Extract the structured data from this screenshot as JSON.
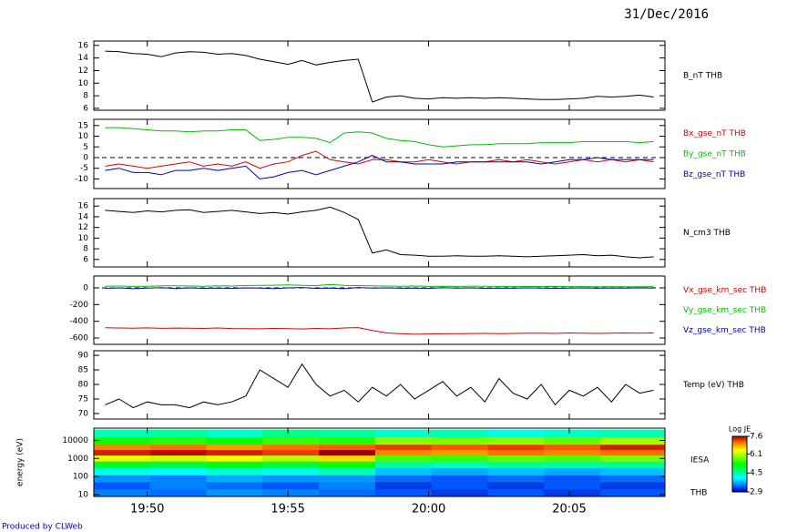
{
  "date": "31/Dec/2016",
  "footer": "Produced by CLWeb",
  "chart_data": [
    {
      "type": "line",
      "x": [
        48.5,
        49,
        49.5,
        50,
        50.5,
        51,
        51.5,
        52,
        52.5,
        53,
        53.5,
        54,
        54.5,
        55,
        55.5,
        56,
        56.5,
        57,
        57.5,
        58,
        58.5,
        59,
        59.5,
        60,
        60.5,
        61,
        61.5,
        62,
        62.5,
        63,
        63.5,
        64,
        64.5,
        65,
        65.5,
        66,
        66.5,
        67,
        67.5,
        68
      ],
      "xlim": [
        48.1,
        68.4
      ],
      "xticks": [
        50,
        55,
        60,
        65
      ],
      "ylim": [
        5.7,
        16.7
      ],
      "yticks": [
        6,
        8,
        10,
        12,
        14,
        16
      ],
      "series": [
        {
          "name": "B_nT THB",
          "color": "#000000",
          "values": [
            15.1,
            15.0,
            14.7,
            14.6,
            14.2,
            14.8,
            15.0,
            14.9,
            14.6,
            14.7,
            14.4,
            13.8,
            13.4,
            13.0,
            13.6,
            12.9,
            13.3,
            13.6,
            13.8,
            7.0,
            7.8,
            8.0,
            7.6,
            7.5,
            7.7,
            7.6,
            7.7,
            7.6,
            7.7,
            7.6,
            7.5,
            7.4,
            7.4,
            7.5,
            7.6,
            7.9,
            7.8,
            7.9,
            8.1,
            7.8
          ]
        }
      ]
    },
    {
      "type": "line",
      "x": [
        48.5,
        49,
        49.5,
        50,
        50.5,
        51,
        51.5,
        52,
        52.5,
        53,
        53.5,
        54,
        54.5,
        55,
        55.5,
        56,
        56.5,
        57,
        57.5,
        58,
        58.5,
        59,
        59.5,
        60,
        60.5,
        61,
        61.5,
        62,
        62.5,
        63,
        63.5,
        64,
        64.5,
        65,
        65.5,
        66,
        66.5,
        67,
        67.5,
        68
      ],
      "xlim": [
        48.1,
        68.4
      ],
      "xticks": [
        50,
        55,
        60,
        65
      ],
      "ylim": [
        -14.5,
        17.9
      ],
      "yticks": [
        -10,
        -5,
        0,
        5,
        10,
        15
      ],
      "zero_line": true,
      "series": [
        {
          "name": "Bx_gse_nT THB",
          "color": "#e00000",
          "values": [
            -4,
            -3,
            -4,
            -5,
            -4,
            -3,
            -2,
            -4,
            -3,
            -4,
            -2,
            -5,
            -3,
            -2,
            1,
            3,
            -1,
            -2,
            -3,
            -1,
            -1,
            -2,
            -2,
            -1,
            -2,
            -3,
            -2,
            -2,
            -1,
            -2,
            -1,
            -2,
            -3,
            -2,
            -1,
            -2,
            -1,
            -2,
            -1,
            -2
          ]
        },
        {
          "name": "By_gse_nT THB",
          "color": "#00c000",
          "values": [
            14,
            14,
            13.5,
            13,
            12.5,
            12.5,
            12,
            12.5,
            12.5,
            13,
            13,
            8,
            8.5,
            9.5,
            9.5,
            9,
            7,
            11.5,
            12,
            11.5,
            9,
            8,
            7.5,
            6,
            5,
            5.5,
            6,
            6,
            6.5,
            6.5,
            6.5,
            7,
            7,
            7,
            7.5,
            7.5,
            7.5,
            7.5,
            7,
            7.5
          ]
        },
        {
          "name": "Bz_gse_nT THB",
          "color": "#0000c0",
          "values": [
            -6,
            -5,
            -7,
            -7,
            -8,
            -6,
            -6,
            -5,
            -6,
            -5,
            -4,
            -10,
            -9,
            -7,
            -6,
            -8,
            -6,
            -4,
            -2,
            1,
            -2,
            -2,
            -3,
            -3,
            -3,
            -2,
            -2,
            -2,
            -2,
            -2,
            -2,
            -3,
            -2,
            -1,
            -1,
            0,
            -1,
            -1,
            -1,
            -1
          ]
        }
      ]
    },
    {
      "type": "line",
      "x": [
        48.5,
        49,
        49.5,
        50,
        50.5,
        51,
        51.5,
        52,
        52.5,
        53,
        53.5,
        54,
        54.5,
        55,
        55.5,
        56,
        56.5,
        57,
        57.5,
        58,
        58.5,
        59,
        59.5,
        60,
        60.5,
        61,
        61.5,
        62,
        62.5,
        63,
        63.5,
        64,
        64.5,
        65,
        65.5,
        66,
        66.5,
        67,
        67.5,
        68
      ],
      "xlim": [
        48.1,
        68.4
      ],
      "xticks": [
        50,
        55,
        60,
        65
      ],
      "ylim": [
        4.6,
        17.4
      ],
      "yticks": [
        6,
        8,
        10,
        12,
        14,
        16
      ],
      "series": [
        {
          "name": "N_cm3 THB",
          "color": "#000000",
          "values": [
            15.2,
            15,
            14.8,
            15.1,
            14.9,
            15.2,
            15.3,
            14.8,
            15,
            15.2,
            14.9,
            14.6,
            14.8,
            14.5,
            14.9,
            15.2,
            15.8,
            14.8,
            13.5,
            7.2,
            7.8,
            6.9,
            6.8,
            6.6,
            6.6,
            6.7,
            6.6,
            6.6,
            6.7,
            6.6,
            6.5,
            6.6,
            6.7,
            6.8,
            6.9,
            6.7,
            6.8,
            6.5,
            6.3,
            6.5
          ]
        }
      ]
    },
    {
      "type": "line",
      "x": [
        48.5,
        49,
        49.5,
        50,
        50.5,
        51,
        51.5,
        52,
        52.5,
        53,
        53.5,
        54,
        54.5,
        55,
        55.5,
        56,
        56.5,
        57,
        57.5,
        58,
        58.5,
        59,
        59.5,
        60,
        60.5,
        61,
        61.5,
        62,
        62.5,
        63,
        63.5,
        64,
        64.5,
        65,
        65.5,
        66,
        66.5,
        67,
        67.5,
        68
      ],
      "xlim": [
        48.1,
        68.4
      ],
      "xticks": [
        50,
        55,
        60,
        65
      ],
      "ylim": [
        -676,
        142
      ],
      "yticks": [
        -600,
        -400,
        -200,
        0
      ],
      "zero_line": true,
      "series": [
        {
          "name": "Vx_gse_km_sec THB",
          "color": "#e00000",
          "values": [
            -478,
            -480,
            -482,
            -479,
            -484,
            -481,
            -483,
            -485,
            -480,
            -486,
            -488,
            -490,
            -485,
            -488,
            -492,
            -485,
            -490,
            -480,
            -475,
            -510,
            -540,
            -548,
            -555,
            -552,
            -550,
            -548,
            -546,
            -545,
            -547,
            -545,
            -543,
            -542,
            -545,
            -540,
            -543,
            -545,
            -542,
            -540,
            -543,
            -540
          ]
        },
        {
          "name": "Vy_gse_km_sec THB",
          "color": "#00c000",
          "values": [
            20,
            22,
            18,
            20,
            25,
            24,
            22,
            20,
            25,
            22,
            28,
            30,
            32,
            35,
            30,
            28,
            40,
            30,
            28,
            25,
            22,
            20,
            22,
            18,
            20,
            18,
            20,
            20,
            18,
            16,
            18,
            15,
            18,
            16,
            15,
            14,
            15,
            13,
            14,
            15
          ]
        },
        {
          "name": "Vz_gse_km_sec THB",
          "color": "#0000c0",
          "values": [
            -5,
            0,
            -10,
            -3,
            2,
            -8,
            0,
            -5,
            -2,
            -6,
            0,
            -3,
            -8,
            0,
            5,
            -5,
            -2,
            -10,
            5,
            -3,
            0,
            -4,
            -2,
            -6,
            2,
            -3,
            0,
            -5,
            -2,
            -4,
            0,
            -3,
            -5,
            -2,
            0,
            -4,
            -1,
            -3,
            0,
            -2
          ]
        }
      ]
    },
    {
      "type": "line",
      "x": [
        48.5,
        49,
        49.5,
        50,
        50.5,
        51,
        51.5,
        52,
        52.5,
        53,
        53.5,
        54,
        54.5,
        55,
        55.5,
        56,
        56.5,
        57,
        57.5,
        58,
        58.5,
        59,
        59.5,
        60,
        60.5,
        61,
        61.5,
        62,
        62.5,
        63,
        63.5,
        64,
        64.5,
        65,
        65.5,
        66,
        66.5,
        67,
        67.5,
        68
      ],
      "xlim": [
        48.1,
        68.4
      ],
      "xticks": [
        50,
        55,
        60,
        65
      ],
      "ylim": [
        68.1,
        91.6
      ],
      "yticks": [
        70,
        75,
        80,
        85,
        90
      ],
      "series": [
        {
          "name": "Temp (eV) THB",
          "color": "#000000",
          "values": [
            73,
            75,
            72,
            74,
            73,
            73,
            72,
            74,
            73,
            74,
            76,
            85,
            82,
            79,
            87,
            80,
            76,
            78,
            74,
            79,
            76,
            80,
            75,
            78,
            81,
            76,
            79,
            74,
            82,
            77,
            75,
            80,
            73,
            78,
            76,
            79,
            74,
            80,
            77,
            78
          ]
        }
      ]
    },
    {
      "type": "heatmap",
      "y_label": "energy (eV)",
      "label": "IESA",
      "sublabel": "THB",
      "x_bins": [
        48.1,
        50.1,
        52.1,
        54.1,
        56.1,
        58.1,
        60.1,
        62.1,
        64.1,
        66.1,
        68.4
      ],
      "y_bins": [
        8,
        20,
        50,
        120,
        300,
        700,
        1500,
        3000,
        6000,
        15000,
        40000
      ],
      "xlim": [
        48.1,
        68.4
      ],
      "xticks": [
        {
          "value": 50,
          "label": "19:50"
        },
        {
          "value": 55,
          "label": "19:55"
        },
        {
          "value": 60,
          "label": "20:00"
        },
        {
          "value": 65,
          "label": "20:05"
        }
      ],
      "ylog": true,
      "ylim": [
        7.8,
        48000
      ],
      "yticks": [
        10,
        100,
        1000,
        10000
      ],
      "z": [
        [
          3.5,
          3.3,
          3.6,
          4.2,
          5.1,
          6.3,
          7.4,
          7.0,
          5.3,
          4.4
        ],
        [
          3.4,
          3.5,
          3.5,
          4.1,
          5.0,
          6.2,
          7.5,
          7.1,
          5.4,
          4.5
        ],
        [
          3.6,
          3.4,
          3.7,
          4.3,
          5.2,
          6.4,
          7.4,
          6.9,
          5.2,
          4.3
        ],
        [
          3.5,
          3.3,
          3.6,
          4.2,
          5.0,
          6.1,
          7.3,
          7.1,
          5.5,
          4.6
        ],
        [
          3.4,
          3.5,
          3.6,
          4.4,
          5.3,
          6.6,
          7.6,
          7.2,
          5.4,
          4.5
        ],
        [
          3.3,
          3.2,
          3.4,
          3.8,
          4.5,
          5.6,
          7.0,
          7.3,
          5.9,
          4.3
        ],
        [
          3.2,
          3.3,
          3.3,
          3.7,
          4.4,
          5.5,
          6.9,
          7.2,
          5.8,
          4.4
        ],
        [
          3.3,
          3.2,
          3.4,
          3.8,
          4.6,
          5.7,
          7.1,
          7.3,
          5.9,
          4.2
        ],
        [
          3.2,
          3.3,
          3.3,
          3.7,
          4.5,
          5.6,
          7.0,
          7.2,
          5.7,
          4.3
        ],
        [
          3.3,
          3.2,
          3.4,
          3.8,
          4.6,
          5.8,
          7.1,
          7.4,
          6.0,
          4.4
        ]
      ],
      "colorbar": {
        "title": "Log JE",
        "range": [
          2.9,
          7.6
        ],
        "ticks": [
          2.9,
          4.5,
          6.1,
          7.6
        ]
      }
    }
  ]
}
